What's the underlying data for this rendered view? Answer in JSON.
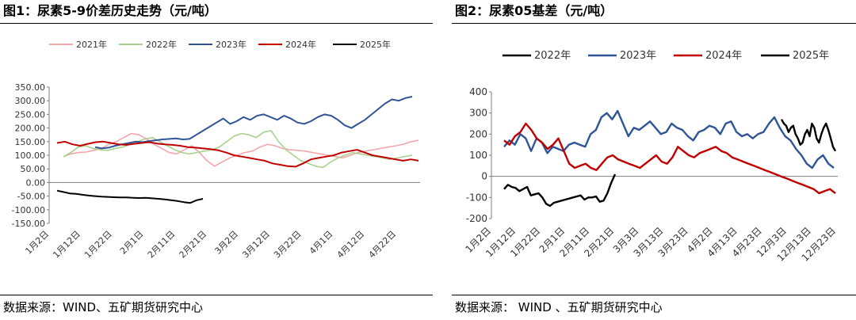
{
  "left": {
    "title": "图1：尿素5-9价差历史走势（元/吨）",
    "source": "数据来源：WIND、五矿期货研究中心"
  },
  "right": {
    "title": "图2：尿素05基差（元/吨）",
    "source": "数据来源： WIND 、五矿期货研究中心"
  },
  "chart_data": [
    {
      "type": "line",
      "title": "图1：尿素5-9价差历史走势（元/吨）",
      "ylim": [
        -150,
        350
      ],
      "yticks": [
        "350.00",
        "300.00",
        "250.00",
        "200.00",
        "150.00",
        "100.00",
        "50.00",
        "0.00",
        "-50.00",
        "-100.00",
        "-150.00"
      ],
      "x_ticks": [
        "1月2日",
        "1月12日",
        "1月22日",
        "2月1日",
        "2月11日",
        "2月21日",
        "3月2日",
        "3月12日",
        "3月22日",
        "4月1日",
        "4月12日",
        "4月22日"
      ],
      "grid": false,
      "legend_position": "top",
      "series": [
        {
          "name": "2021年",
          "color": "#f4a6ad",
          "values": [
            95,
            105,
            110,
            112,
            118,
            125,
            140,
            150,
            165,
            180,
            175,
            160,
            140,
            125,
            110,
            105,
            120,
            135,
            110,
            80,
            60,
            75,
            90,
            100,
            110,
            115,
            130,
            140,
            135,
            125,
            120,
            118,
            115,
            110,
            105,
            100,
            95,
            90,
            100,
            110,
            115,
            120,
            125,
            130,
            135,
            140,
            150,
            155
          ]
        },
        {
          "name": "2022年",
          "color": "#a9d18e",
          "values": [
            95,
            110,
            130,
            135,
            125,
            120,
            118,
            125,
            130,
            140,
            150,
            160,
            165,
            150,
            135,
            120,
            110,
            105,
            110,
            115,
            120,
            130,
            150,
            170,
            180,
            175,
            165,
            185,
            190,
            150,
            120,
            100,
            80,
            70,
            60,
            55,
            75,
            90,
            100,
            110,
            105,
            100,
            95,
            90,
            85,
            90,
            95,
            100
          ]
        },
        {
          "name": "2023年",
          "color": "#2f5597",
          "values": [
            130,
            125,
            128,
            135,
            140,
            145,
            150,
            148,
            152,
            155,
            158,
            160,
            162,
            158,
            160,
            175,
            190,
            205,
            220,
            235,
            215,
            225,
            240,
            230,
            245,
            250,
            240,
            230,
            245,
            235,
            220,
            215,
            225,
            240,
            250,
            245,
            230,
            210,
            200,
            215,
            230,
            250,
            270,
            290,
            305,
            300,
            310,
            315
          ]
        },
        {
          "name": "2024年",
          "color": "#c00000",
          "values": [
            145,
            150,
            140,
            135,
            142,
            148,
            150,
            145,
            140,
            138,
            142,
            145,
            148,
            143,
            140,
            138,
            135,
            130,
            128,
            125,
            122,
            118,
            110,
            100,
            95,
            90,
            85,
            80,
            70,
            65,
            60,
            58,
            70,
            85,
            90,
            95,
            100,
            110,
            115,
            120,
            110,
            100,
            95,
            90,
            85,
            80,
            85,
            80
          ]
        },
        {
          "name": "2025年",
          "color": "#000000",
          "values": [
            -30,
            -35,
            -40,
            -42,
            -45,
            -48,
            -50,
            -52,
            -53,
            -54,
            -55,
            -55,
            -56,
            -57,
            -56,
            -58,
            -60,
            -62,
            -65,
            -68,
            -72,
            -75,
            -65,
            -60
          ]
        }
      ]
    },
    {
      "type": "line",
      "title": "图2：尿素05基差（元/吨）",
      "ylim": [
        -200,
        400
      ],
      "yticks": [
        "400",
        "300",
        "200",
        "100",
        "0",
        "-100",
        "-200"
      ],
      "x_ticks": [
        "1月2日",
        "1月12日",
        "1月22日",
        "2月1日",
        "2月11日",
        "2月21日",
        "3月3日",
        "3月13日",
        "3月23日",
        "4月2日",
        "4月13日",
        "4月23日",
        "12月3日",
        "12月13日",
        "12月23日"
      ],
      "grid": false,
      "legend_position": "top",
      "series": [
        {
          "name": "2022年",
          "color": "#000000",
          "values": [
            -60,
            -40,
            -50,
            -55,
            -70,
            -60,
            -50,
            -90,
            -85,
            -80,
            -100,
            -130,
            -140,
            -125,
            -120,
            -115,
            -110,
            -105,
            -100,
            -95,
            -90,
            -110,
            -100,
            -100,
            -95,
            -120,
            -115,
            -80,
            -30,
            10
          ]
        },
        {
          "name": "2023年",
          "color": "#2f5597",
          "values": [
            140,
            170,
            150,
            200,
            180,
            120,
            180,
            160,
            110,
            140,
            130,
            120,
            150,
            160,
            150,
            140,
            200,
            220,
            280,
            300,
            270,
            310,
            250,
            190,
            230,
            220,
            240,
            260,
            230,
            200,
            210,
            250,
            230,
            220,
            190,
            170,
            210,
            220,
            240,
            230,
            200,
            250,
            260,
            210,
            190,
            200,
            180,
            200,
            210,
            250,
            280,
            230,
            190,
            170,
            130,
            100,
            60,
            40,
            80,
            100,
            60,
            40
          ]
        },
        {
          "name": "2024年",
          "color": "#c00000",
          "values": [
            170,
            150,
            190,
            210,
            250,
            220,
            180,
            160,
            130,
            150,
            180,
            120,
            60,
            40,
            50,
            60,
            40,
            30,
            60,
            90,
            100,
            80,
            70,
            60,
            50,
            40,
            60,
            80,
            100,
            70,
            60,
            90,
            140,
            120,
            100,
            90,
            110,
            120,
            130,
            140,
            120,
            110,
            90,
            80,
            70,
            60,
            50,
            40,
            30,
            20,
            10,
            0,
            -10,
            -20,
            -30,
            -40,
            -50,
            -60,
            -80,
            -70,
            -60,
            -80
          ]
        },
        {
          "name": "2025年",
          "color": "#000000",
          "values": [
            270,
            250,
            240,
            210,
            230,
            240,
            200,
            180,
            150,
            160,
            200,
            220,
            190,
            250,
            230,
            180,
            160,
            200,
            230,
            250,
            220,
            180,
            140,
            120
          ]
        }
      ]
    }
  ]
}
